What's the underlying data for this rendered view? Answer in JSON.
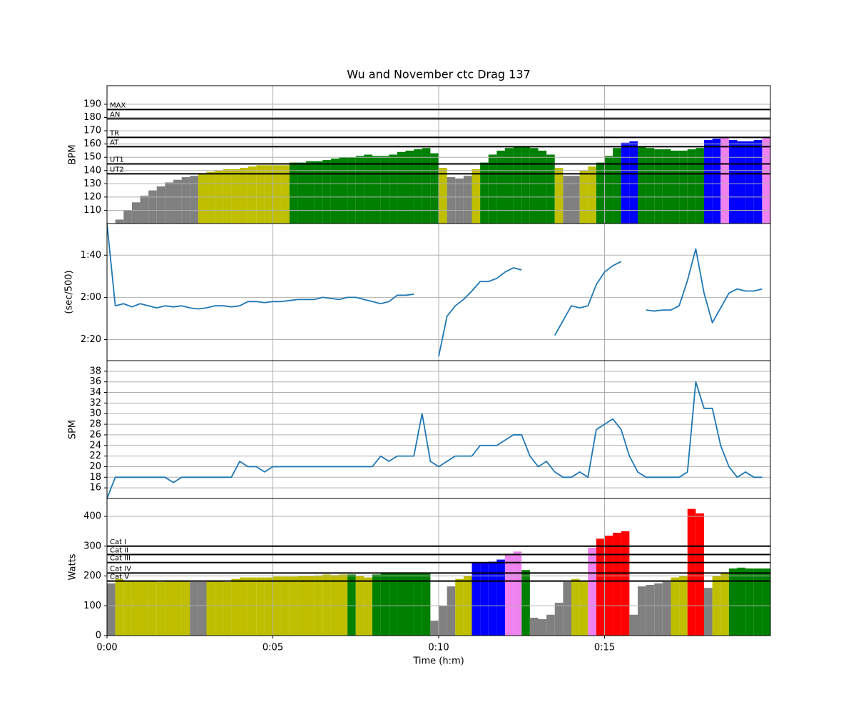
{
  "chart_data": {
    "type": "panels",
    "title": "Wu and November ctc Drag 137",
    "xlabel": "Time (h:m)",
    "xlim": [
      0,
      20
    ],
    "xticks": [
      {
        "value": 0,
        "label": "0:00"
      },
      {
        "value": 5,
        "label": "0:05"
      },
      {
        "value": 10,
        "label": "0:10"
      },
      {
        "value": 15,
        "label": "0:15"
      }
    ],
    "grid": true,
    "x": [
      0,
      0.25,
      0.5,
      0.75,
      1,
      1.25,
      1.5,
      1.75,
      2,
      2.25,
      2.5,
      2.75,
      3,
      3.25,
      3.5,
      3.75,
      4,
      4.25,
      4.5,
      4.75,
      5,
      5.25,
      5.5,
      5.75,
      6,
      6.25,
      6.5,
      6.75,
      7,
      7.25,
      7.5,
      7.75,
      8,
      8.25,
      8.5,
      8.75,
      9,
      9.25,
      9.5,
      9.75,
      10,
      10.25,
      10.5,
      10.75,
      11,
      11.25,
      11.5,
      11.75,
      12,
      12.25,
      12.5,
      12.75,
      13,
      13.25,
      13.5,
      13.75,
      14,
      14.25,
      14.5,
      14.75,
      15,
      15.25,
      15.5,
      15.75,
      16,
      16.25,
      16.5,
      16.75,
      17,
      17.25,
      17.5,
      17.75,
      18,
      18.25,
      18.5,
      18.75,
      19,
      19.25,
      19.5,
      19.75
    ],
    "panels": [
      {
        "type": "bar",
        "ylabel": "BPM",
        "ylim": [
          100,
          204
        ],
        "yticks": [
          110,
          120,
          130,
          140,
          150,
          160,
          170,
          180,
          190
        ],
        "values": [
          null,
          103,
          110,
          116,
          121,
          125,
          128,
          131,
          133,
          135,
          136,
          138,
          139,
          140,
          141,
          141,
          142,
          143,
          144,
          144,
          144,
          144,
          146,
          146,
          147,
          147,
          148,
          149,
          150,
          150,
          151,
          152,
          151,
          151,
          152,
          154,
          155,
          156,
          157,
          153,
          142,
          135,
          134,
          136,
          141,
          146,
          152,
          155,
          157,
          158,
          158,
          157,
          155,
          152,
          142,
          136,
          136,
          140,
          143,
          146,
          151,
          157,
          161,
          162,
          158,
          157,
          156,
          156,
          155,
          155,
          156,
          157,
          163,
          164,
          165,
          163,
          162,
          162,
          163,
          165
        ],
        "colors": [
          null,
          "#808080",
          "#808080",
          "#808080",
          "#808080",
          "#808080",
          "#808080",
          "#808080",
          "#808080",
          "#808080",
          "#808080",
          "#bfbf00",
          "#bfbf00",
          "#bfbf00",
          "#bfbf00",
          "#bfbf00",
          "#bfbf00",
          "#bfbf00",
          "#bfbf00",
          "#bfbf00",
          "#bfbf00",
          "#bfbf00",
          "#008000",
          "#008000",
          "#008000",
          "#008000",
          "#008000",
          "#008000",
          "#008000",
          "#008000",
          "#008000",
          "#008000",
          "#008000",
          "#008000",
          "#008000",
          "#008000",
          "#008000",
          "#008000",
          "#008000",
          "#008000",
          "#bfbf00",
          "#808080",
          "#808080",
          "#808080",
          "#bfbf00",
          "#008000",
          "#008000",
          "#008000",
          "#008000",
          "#008000",
          "#008000",
          "#008000",
          "#008000",
          "#008000",
          "#bfbf00",
          "#808080",
          "#808080",
          "#bfbf00",
          "#bfbf00",
          "#008000",
          "#008000",
          "#008000",
          "#0000ff",
          "#0000ff",
          "#008000",
          "#008000",
          "#008000",
          "#008000",
          "#008000",
          "#008000",
          "#008000",
          "#008000",
          "#0000ff",
          "#0000ff",
          "#ee82ee",
          "#0000ff",
          "#0000ff",
          "#0000ff",
          "#0000ff",
          "#ee82ee"
        ],
        "ref_lines": [
          {
            "value": 186,
            "label": "MAX"
          },
          {
            "value": 179,
            "label": "AN"
          },
          {
            "value": 165,
            "label": "TR"
          },
          {
            "value": 158,
            "label": "AT"
          },
          {
            "value": 145,
            "label": "UT1"
          },
          {
            "value": 137.5,
            "label": "UT2"
          }
        ]
      },
      {
        "type": "line",
        "ylabel": "(sec/500)",
        "ylim": [
          150,
          85
        ],
        "yticks": [
          {
            "value": 100,
            "label": "1:40"
          },
          {
            "value": 120,
            "label": "2:00"
          },
          {
            "value": 140,
            "label": "2:20"
          }
        ],
        "color": "#1f77b4",
        "values": [
          85,
          124,
          123,
          124.5,
          123,
          124,
          125,
          124,
          124.5,
          124,
          125,
          125.5,
          125,
          124,
          124,
          124.5,
          124,
          122,
          122,
          122.5,
          122,
          122,
          121.5,
          121,
          121,
          121,
          120,
          120.5,
          121,
          120,
          120,
          121,
          122,
          123,
          122,
          119,
          119,
          118.5,
          null,
          null,
          148,
          129,
          124,
          121,
          117,
          112.5,
          112.5,
          111,
          108,
          106,
          107,
          null,
          null,
          null,
          138,
          131,
          124,
          125,
          124,
          114,
          108,
          105,
          103,
          null,
          null,
          126,
          126.5,
          126,
          126,
          124,
          112,
          97,
          118,
          132,
          125,
          118,
          116,
          117,
          117,
          116
        ]
      },
      {
        "type": "line",
        "ylabel": "SPM",
        "ylim": [
          14,
          40
        ],
        "yticks": [
          16,
          18,
          20,
          22,
          24,
          26,
          28,
          30,
          32,
          34,
          36,
          38
        ],
        "color": "#1f77b4",
        "values": [
          14,
          18,
          18,
          18,
          18,
          18,
          18,
          18,
          17,
          18,
          18,
          18,
          18,
          18,
          18,
          18,
          21,
          20,
          20,
          19,
          20,
          20,
          20,
          20,
          20,
          20,
          20,
          20,
          20,
          20,
          20,
          20,
          20,
          22,
          21,
          22,
          22,
          22,
          30,
          21,
          20,
          21,
          22,
          22,
          22,
          24,
          24,
          24,
          25,
          26,
          26,
          22,
          20,
          21,
          19,
          18,
          18,
          19,
          18,
          27,
          28,
          29,
          27,
          22,
          19,
          18,
          18,
          18,
          18,
          18,
          19,
          36,
          31,
          31,
          24,
          20,
          18,
          19,
          18,
          18
        ]
      },
      {
        "type": "bar",
        "ylabel": "Watts",
        "ylim": [
          0,
          460
        ],
        "yticks": [
          0,
          100,
          200,
          300,
          400
        ],
        "values": [
          175,
          190,
          185,
          185,
          185,
          185,
          180,
          183,
          183,
          182,
          180,
          180,
          182,
          182,
          180,
          190,
          195,
          195,
          195,
          195,
          198,
          198,
          198,
          200,
          200,
          202,
          205,
          203,
          205,
          205,
          200,
          195,
          205,
          208,
          210,
          212,
          212,
          212,
          208,
          50,
          100,
          165,
          190,
          200,
          245,
          245,
          248,
          255,
          275,
          282,
          220,
          60,
          55,
          70,
          110,
          180,
          190,
          185,
          295,
          325,
          335,
          345,
          350,
          70,
          165,
          170,
          175,
          180,
          195,
          200,
          425,
          410,
          160,
          200,
          210,
          225,
          228,
          225,
          225,
          225
        ],
        "colors": [
          "#808080",
          "#bfbf00",
          "#bfbf00",
          "#bfbf00",
          "#bfbf00",
          "#bfbf00",
          "#bfbf00",
          "#bfbf00",
          "#bfbf00",
          "#bfbf00",
          "#808080",
          "#808080",
          "#bfbf00",
          "#bfbf00",
          "#bfbf00",
          "#bfbf00",
          "#bfbf00",
          "#bfbf00",
          "#bfbf00",
          "#bfbf00",
          "#bfbf00",
          "#bfbf00",
          "#bfbf00",
          "#bfbf00",
          "#bfbf00",
          "#bfbf00",
          "#bfbf00",
          "#bfbf00",
          "#bfbf00",
          "#008000",
          "#bfbf00",
          "#bfbf00",
          "#008000",
          "#008000",
          "#008000",
          "#008000",
          "#008000",
          "#008000",
          "#008000",
          "#808080",
          "#808080",
          "#808080",
          "#bfbf00",
          "#bfbf00",
          "#0000ff",
          "#0000ff",
          "#0000ff",
          "#0000ff",
          "#ee82ee",
          "#ee82ee",
          "#008000",
          "#808080",
          "#808080",
          "#808080",
          "#808080",
          "#808080",
          "#bfbf00",
          "#bfbf00",
          "#ee82ee",
          "#ff0000",
          "#ff0000",
          "#ff0000",
          "#ff0000",
          "#808080",
          "#808080",
          "#808080",
          "#808080",
          "#808080",
          "#bfbf00",
          "#bfbf00",
          "#ff0000",
          "#ff0000",
          "#808080",
          "#bfbf00",
          "#bfbf00",
          "#008000",
          "#008000",
          "#008000",
          "#008000",
          "#008000"
        ],
        "ref_lines": [
          {
            "value": 300,
            "label": "Cat I"
          },
          {
            "value": 272,
            "label": "Cat II"
          },
          {
            "value": 245,
            "label": "Cat III"
          },
          {
            "value": 210,
            "label": "Cat IV"
          },
          {
            "value": 183,
            "label": "Cat V"
          }
        ]
      }
    ]
  }
}
